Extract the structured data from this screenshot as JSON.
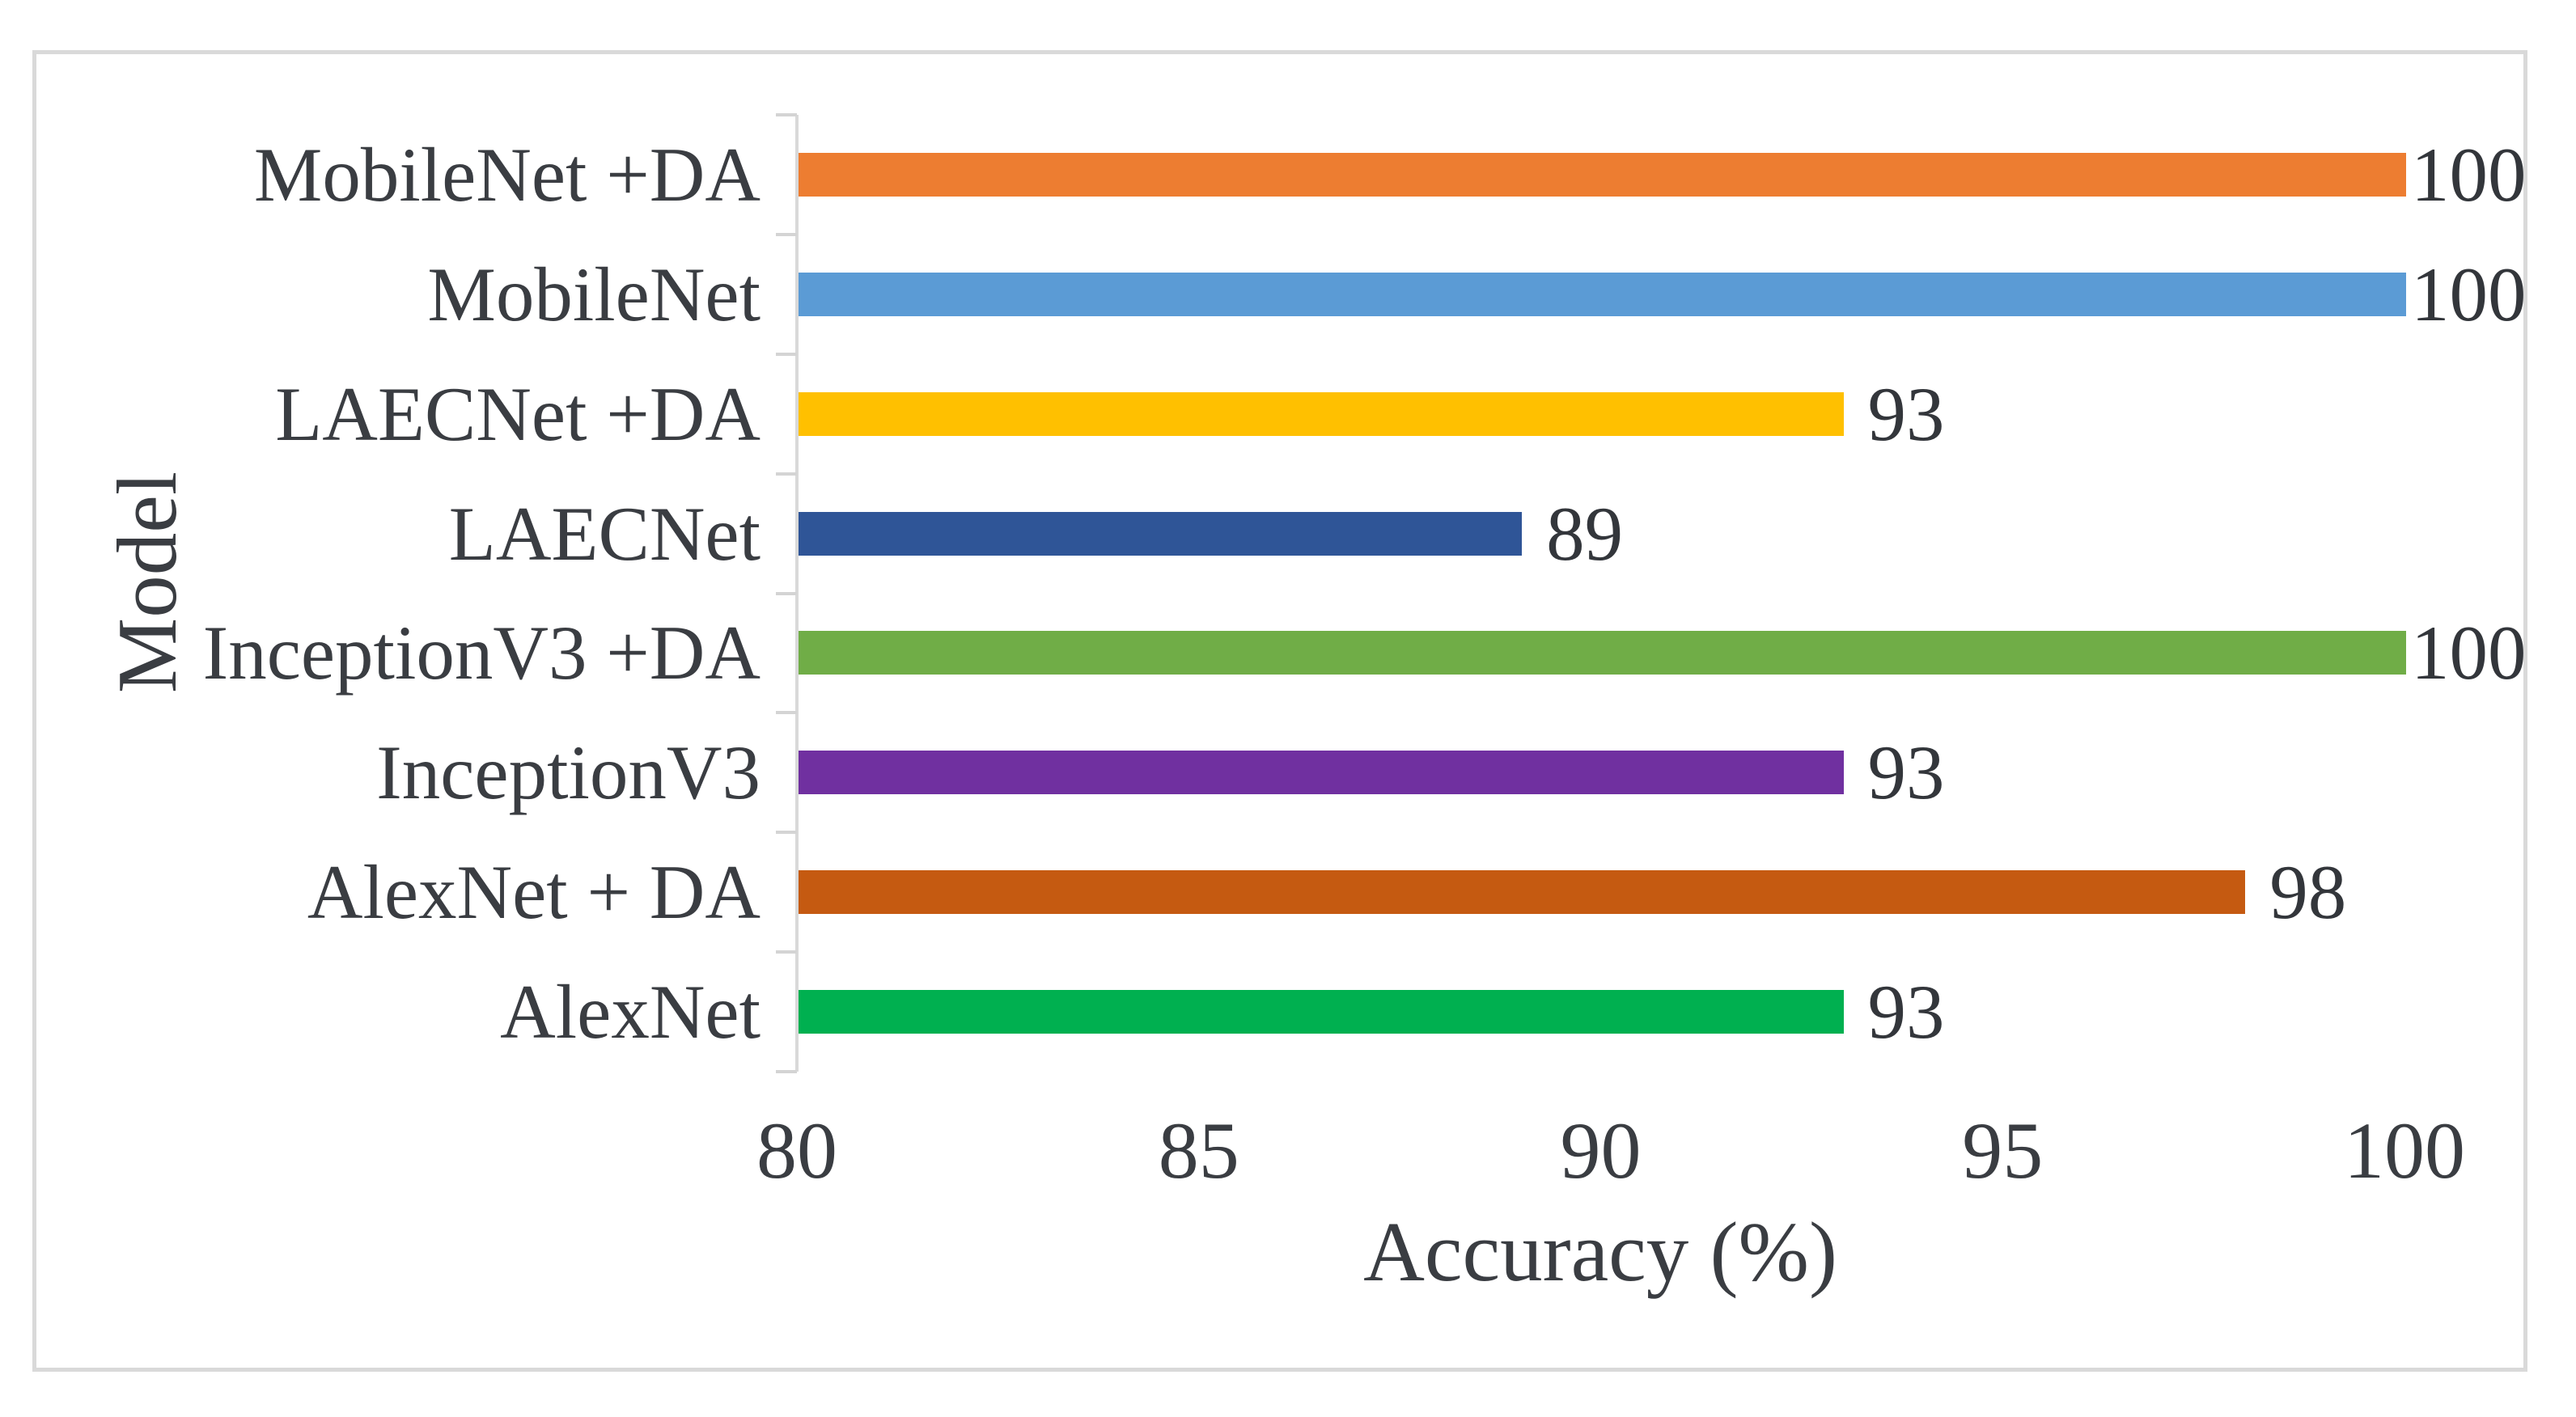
{
  "figure": {
    "border_color": "#D9D9D9",
    "background": "#FFFFFF",
    "axis_color": "#D9D9D9",
    "text_color": "#3A3D42"
  },
  "chart_data": {
    "type": "bar",
    "orientation": "horizontal",
    "title": "",
    "xlabel": "Accuracy (%)",
    "ylabel": "Model",
    "categories": [
      "MobileNet +DA",
      "MobileNet",
      "LAECNet +DA",
      "LAECNet",
      "InceptionV3 +DA",
      "InceptionV3",
      "AlexNet + DA",
      "AlexNet"
    ],
    "values": [
      100,
      100,
      93,
      89,
      100,
      93,
      98,
      93
    ],
    "data_labels": [
      "100",
      "100",
      "93",
      "89",
      "100",
      "93",
      "98",
      "93"
    ],
    "bar_colors": [
      "#ED7D31",
      "#5B9BD5",
      "#FFC000",
      "#2F5597",
      "#70AD47",
      "#7030A0",
      "#C55A11",
      "#00B050"
    ],
    "x_ticks": [
      "80",
      "85",
      "90",
      "95",
      "100"
    ],
    "xlim": [
      80,
      100
    ],
    "grid": false,
    "legend": false,
    "data_labels_position": "outside-end"
  }
}
